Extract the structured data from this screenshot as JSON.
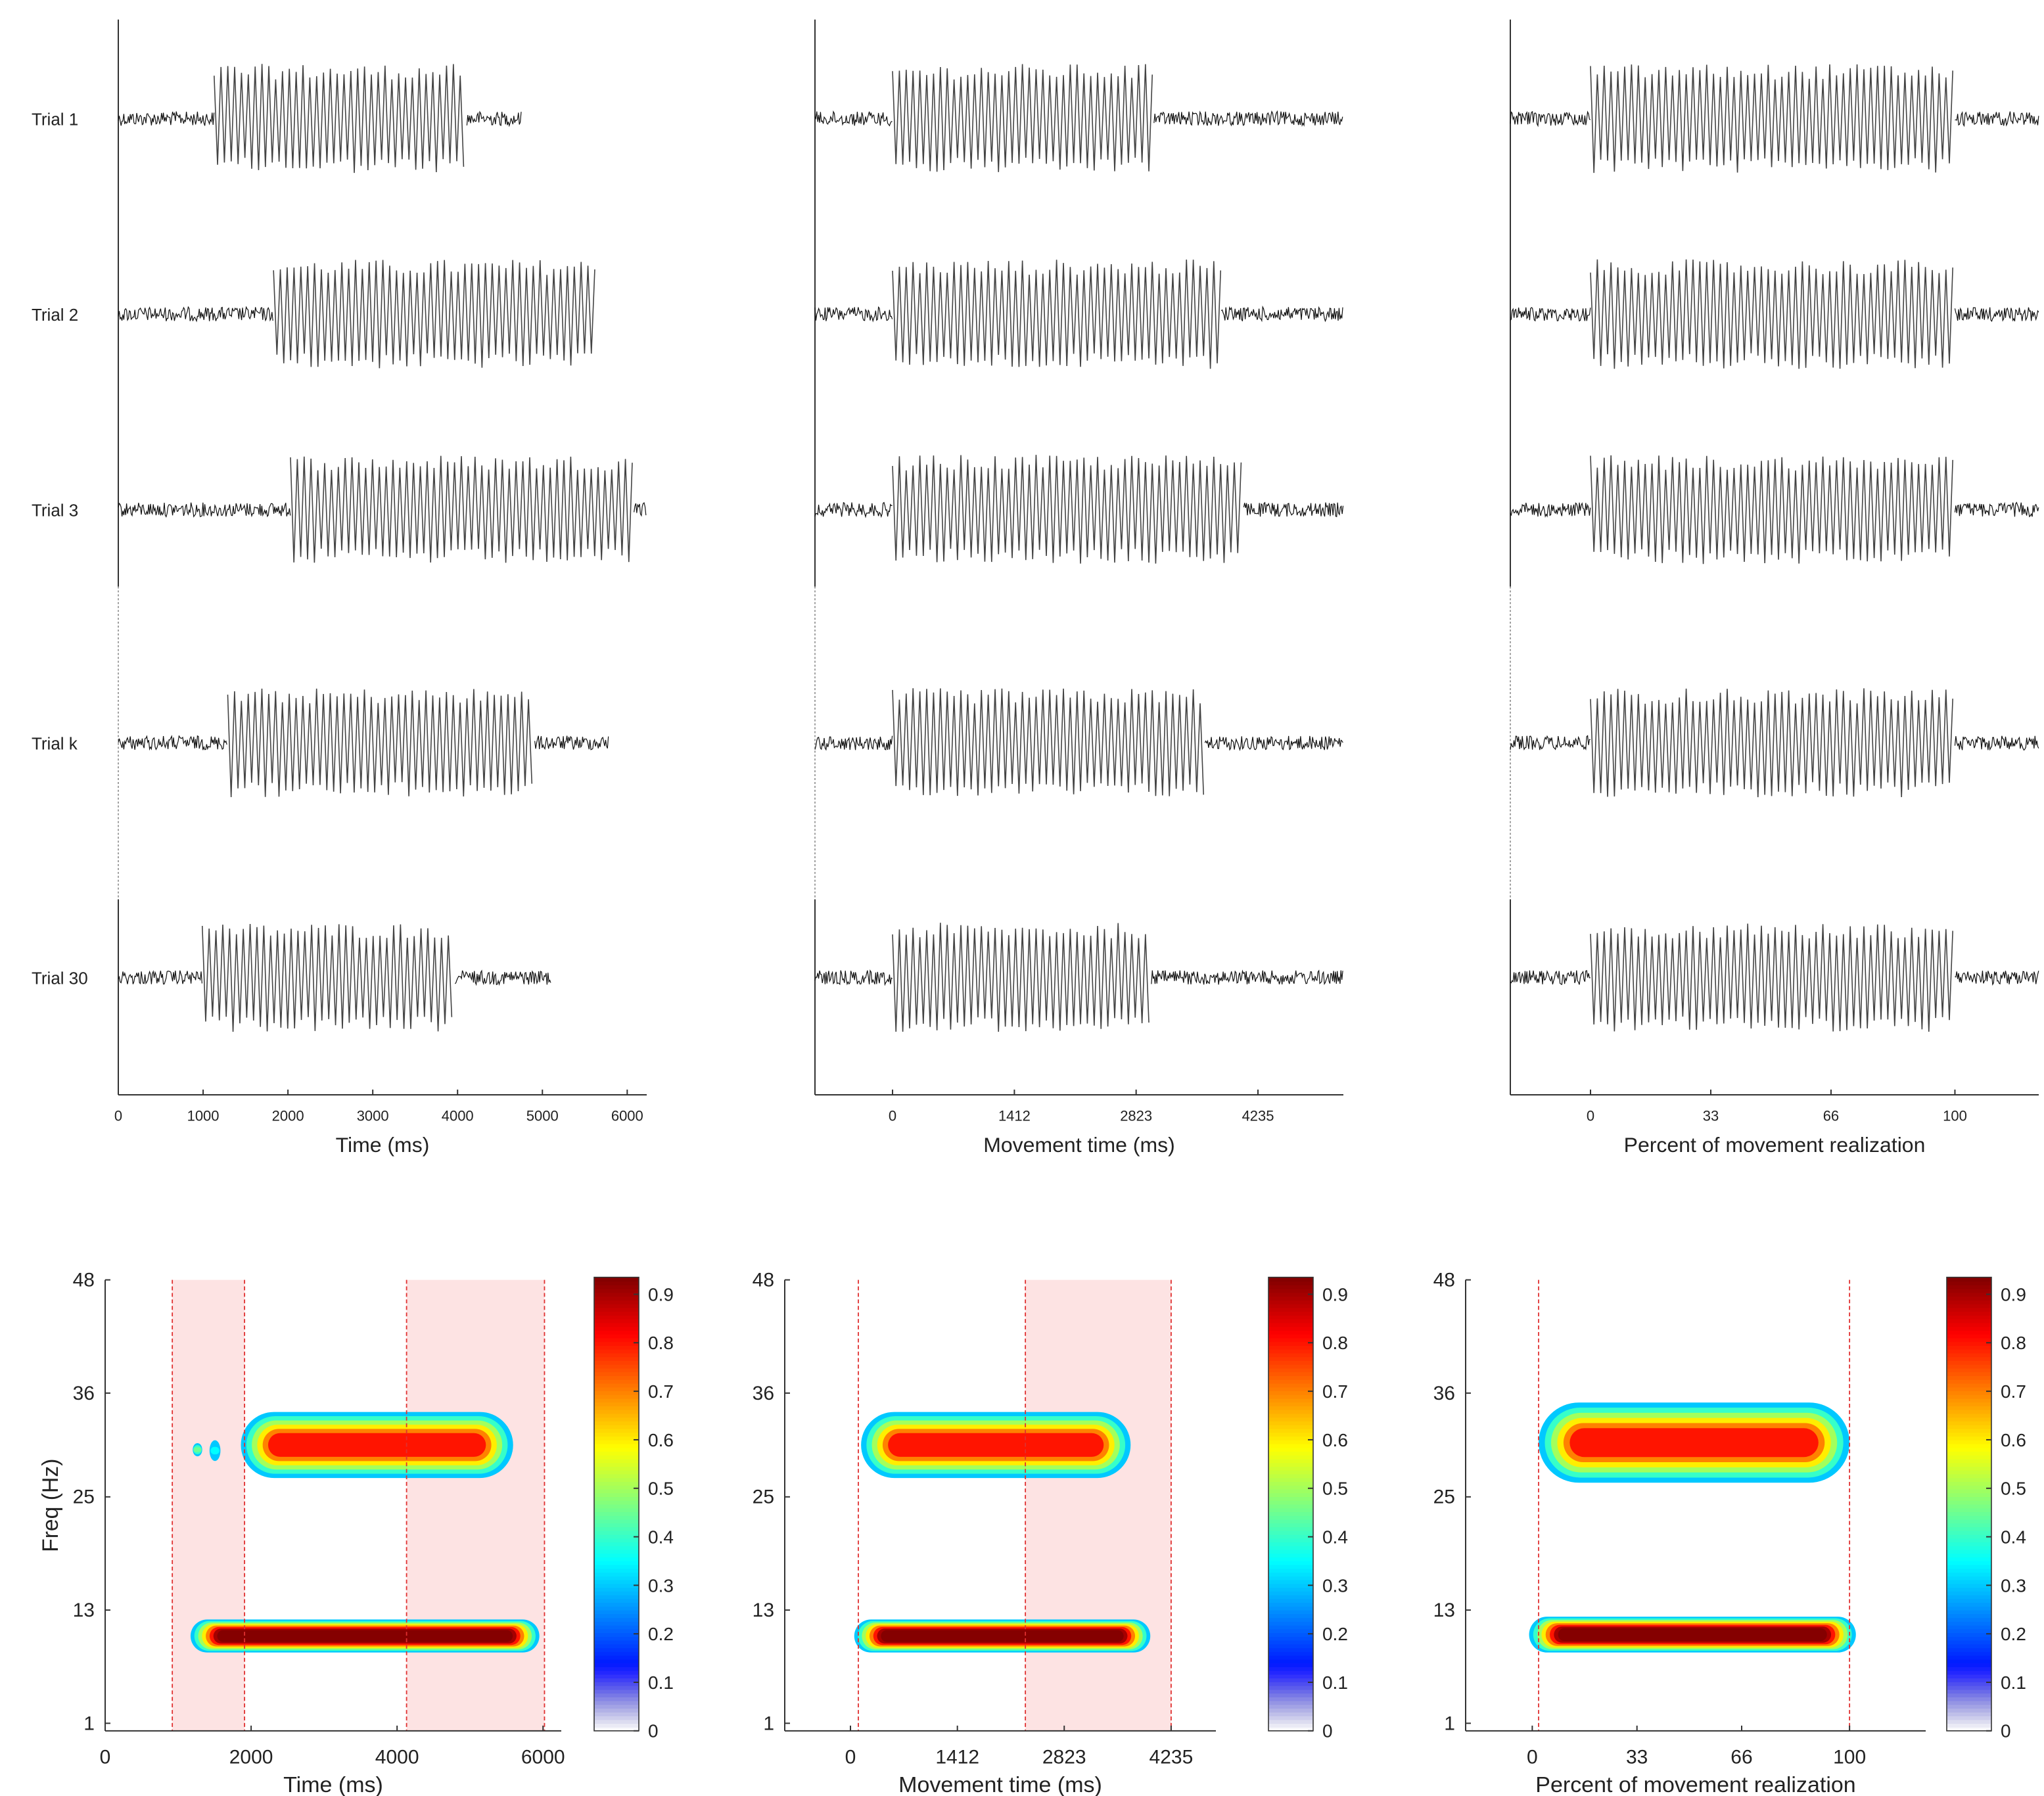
{
  "chart_data": [
    {
      "type": "trials",
      "xlabel": "Time (ms)",
      "xlim": [
        0,
        6230
      ],
      "xticks": [
        0,
        1000,
        2000,
        3000,
        4000,
        5000,
        6000
      ],
      "trials": [
        {
          "label": "Trial 1",
          "onset": 1130,
          "offset": 4110,
          "end": 4760
        },
        {
          "label": "Trial 2",
          "onset": 1830,
          "offset": 5630,
          "end": 5630
        },
        {
          "label": "Trial 3",
          "onset": 2030,
          "offset": 6080,
          "end": 6230
        },
        {
          "label": "Trial k",
          "onset": 1290,
          "offset": 4910,
          "end": 5780
        },
        {
          "label": "Trial 30",
          "onset": 990,
          "offset": 3970,
          "end": 5100
        }
      ]
    },
    {
      "type": "trials",
      "xlabel": "Movement time (ms)",
      "xlim": [
        -899,
        5225
      ],
      "xticks": [
        0,
        1412,
        2823,
        4235
      ],
      "trials": [
        {
          "onset": 0,
          "offset": 3030
        },
        {
          "onset": 0,
          "offset": 3810
        },
        {
          "onset": 0,
          "offset": 4070
        },
        {
          "onset": 0,
          "offset": 3620
        },
        {
          "onset": 0,
          "offset": 3000
        }
      ]
    },
    {
      "type": "trials",
      "xlabel": "Percent of movement realization",
      "xlim": [
        -22,
        123
      ],
      "xticks": [
        0,
        33,
        66,
        100
      ],
      "trials": [
        {
          "onset": 0,
          "offset": 100
        },
        {
          "onset": 0,
          "offset": 100
        },
        {
          "onset": 0,
          "offset": 100
        },
        {
          "onset": 0,
          "offset": 100
        },
        {
          "onset": 0,
          "offset": 100
        }
      ]
    },
    {
      "type": "tf",
      "xlabel": "Time (ms)",
      "ylabel": "Freq (Hz)",
      "xlim": [
        0,
        6250
      ],
      "ylim": [
        0.2,
        48
      ],
      "xticks": [
        0,
        2000,
        4000,
        6000
      ],
      "yticks": [
        1,
        13,
        25,
        36,
        48
      ],
      "clim": [
        0,
        0.935
      ],
      "cticks": [
        0,
        0.1,
        0.2,
        0.3,
        0.4,
        0.5,
        0.6,
        0.7,
        0.8,
        0.9
      ],
      "shaded": [
        [
          920,
          1910
        ],
        [
          4130,
          6020
        ]
      ],
      "markers": [
        920,
        1910,
        4130,
        6020
      ],
      "blobs": [
        {
          "x": [
            1860,
            5590
          ],
          "y": [
            27,
            34
          ],
          "peak": 0.8
        },
        {
          "x": [
            1170,
            5950
          ],
          "y": [
            8.5,
            12
          ],
          "peak": 0.93
        },
        {
          "x": [
            1430,
            1580
          ],
          "y": [
            28.8,
            31
          ],
          "peak": 0.35
        },
        {
          "x": [
            1200,
            1330
          ],
          "y": [
            29.3,
            30.7
          ],
          "peak": 0.45
        }
      ]
    },
    {
      "type": "tf",
      "xlabel": "Movement time (ms)",
      "xlim": [
        -868,
        4826
      ],
      "ylim": [
        0.2,
        48
      ],
      "xticks": [
        0,
        1412,
        2823,
        4235
      ],
      "yticks": [
        1,
        13,
        25,
        36,
        48
      ],
      "clim": [
        0,
        0.935
      ],
      "cticks": [
        0,
        0.1,
        0.2,
        0.3,
        0.4,
        0.5,
        0.6,
        0.7,
        0.8,
        0.9
      ],
      "shaded": [
        [
          2310,
          4235
        ]
      ],
      "markers": [
        104,
        2310,
        4235
      ],
      "blobs": [
        {
          "x": [
            140,
            3700
          ],
          "y": [
            27,
            34
          ],
          "peak": 0.8
        },
        {
          "x": [
            50,
            3960
          ],
          "y": [
            8.5,
            12
          ],
          "peak": 0.93
        }
      ]
    },
    {
      "type": "tf",
      "xlabel": "Percent of movement realization",
      "xlim": [
        -21,
        124
      ],
      "ylim": [
        0.2,
        48
      ],
      "xticks": [
        0,
        33,
        66,
        100
      ],
      "yticks": [
        1,
        13,
        25,
        36,
        48
      ],
      "clim": [
        0,
        0.935
      ],
      "cticks": [
        0,
        0.1,
        0.2,
        0.3,
        0.4,
        0.5,
        0.6,
        0.7,
        0.8,
        0.9
      ],
      "shaded": [],
      "markers": [
        2,
        100
      ],
      "blobs": [
        {
          "x": [
            2,
            100
          ],
          "y": [
            26.5,
            35
          ],
          "peak": 0.8
        },
        {
          "x": [
            -1,
            102
          ],
          "y": [
            8.5,
            12.3
          ],
          "peak": 0.93
        }
      ]
    }
  ]
}
